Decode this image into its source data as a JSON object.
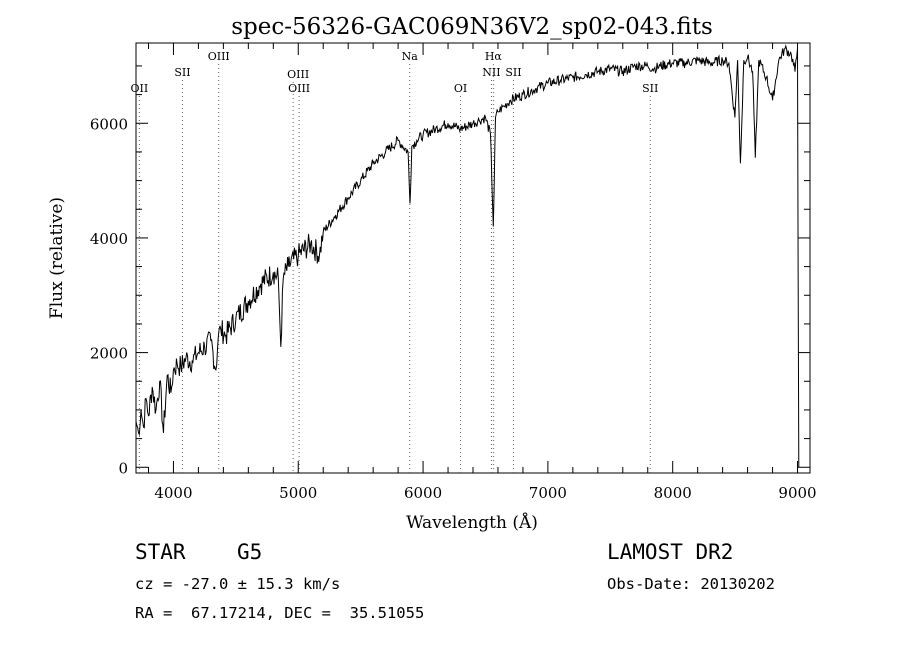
{
  "chart_data": {
    "type": "line",
    "title": "spec-56326-GAC069N36V2_sp02-043.fits",
    "xlabel": "Wavelength (Å)",
    "ylabel": "Flux (relative)",
    "xlim": [
      3700,
      9100
    ],
    "ylim": [
      -100,
      7400
    ],
    "x_ticks": [
      4000,
      5000,
      6000,
      7000,
      8000,
      9000
    ],
    "y_ticks": [
      0,
      2000,
      4000,
      6000
    ],
    "grid": false,
    "series": [
      {
        "name": "Flux",
        "x": [
          3700,
          3720,
          3740,
          3760,
          3780,
          3800,
          3830,
          3860,
          3890,
          3920,
          3950,
          3980,
          4000,
          4030,
          4060,
          4100,
          4150,
          4200,
          4250,
          4300,
          4340,
          4360,
          4380,
          4420,
          4500,
          4600,
          4700,
          4800,
          4840,
          4860,
          4880,
          4920,
          5000,
          5100,
          5170,
          5200,
          5300,
          5400,
          5500,
          5600,
          5700,
          5800,
          5880,
          5895,
          5910,
          5950,
          6000,
          6100,
          6200,
          6300,
          6400,
          6450,
          6500,
          6540,
          6563,
          6580,
          6600,
          6650,
          6700,
          6800,
          6900,
          7000,
          7100,
          7200,
          7300,
          7400,
          7500,
          7600,
          7700,
          7800,
          7850,
          7900,
          8000,
          8100,
          8200,
          8300,
          8400,
          8450,
          8498,
          8520,
          8542,
          8570,
          8600,
          8640,
          8662,
          8690,
          8750,
          8800,
          8850,
          8900,
          8950,
          8980,
          9000,
          9010
        ],
        "values": [
          800,
          600,
          1000,
          700,
          1200,
          900,
          1400,
          1000,
          1500,
          600,
          1600,
          1300,
          1700,
          1800,
          1750,
          1900,
          1850,
          2000,
          2100,
          2200,
          1700,
          2300,
          2400,
          2300,
          2600,
          2900,
          3200,
          3400,
          3300,
          2100,
          3300,
          3500,
          3700,
          3900,
          3700,
          4100,
          4400,
          4700,
          5000,
          5300,
          5500,
          5700,
          5500,
          4600,
          5600,
          5700,
          5800,
          5900,
          6000,
          5900,
          6000,
          6050,
          6100,
          5800,
          4200,
          6100,
          6200,
          6300,
          6400,
          6500,
          6600,
          6700,
          6750,
          6800,
          6850,
          6900,
          6950,
          6900,
          7000,
          7000,
          6950,
          7000,
          7050,
          7050,
          7100,
          7050,
          7100,
          7050,
          6100,
          7100,
          5300,
          7100,
          7150,
          6900,
          5400,
          7100,
          6800,
          6400,
          7100,
          7300,
          7200,
          6900,
          7300,
          0
        ]
      }
    ],
    "line_annotations": [
      {
        "label": "OII",
        "wavelength": 3727
      },
      {
        "label": "SII",
        "wavelength": 4072
      },
      {
        "label": "OIII",
        "wavelength": 4363
      },
      {
        "label": "OIII",
        "wavelength": 4959
      },
      {
        "label": "OIII",
        "wavelength": 5007
      },
      {
        "label": "Na",
        "wavelength": 5893
      },
      {
        "label": "OI",
        "wavelength": 6300
      },
      {
        "label": "Hα",
        "wavelength": 6563
      },
      {
        "label": "NII",
        "wavelength": 6548
      },
      {
        "label": "SII",
        "wavelength": 6724
      },
      {
        "label": "SII",
        "wavelength": 7820
      }
    ]
  },
  "info": {
    "class_label": "STAR",
    "subclass": "G5",
    "survey": "LAMOST DR2",
    "cz": "cz = -27.0 ± 15.3 km/s",
    "obs_date": "Obs-Date: 20130202",
    "coords": "RA =  67.17214, DEC =  35.51055"
  }
}
